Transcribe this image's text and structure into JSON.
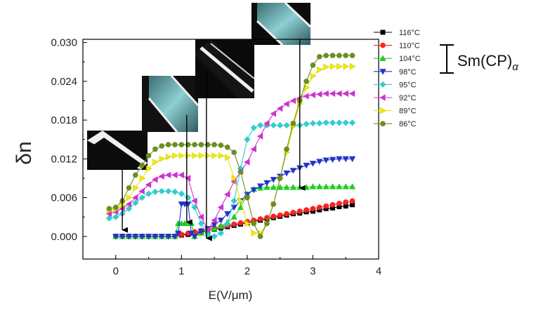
{
  "chart_data": {
    "type": "line",
    "xlabel": "E(V/μm)",
    "ylabel": "δn",
    "xlim": [
      -0.5,
      4
    ],
    "ylim": [
      -0.0035,
      0.0305
    ],
    "xticks": [
      "0",
      "1",
      "2",
      "3",
      "4"
    ],
    "yticks": [
      "0.000",
      "0.006",
      "0.012",
      "0.018",
      "0.024",
      "0.030"
    ],
    "grid": false,
    "legend": "right",
    "bracket_label": "Sm(CP)",
    "bracket_subscript": "α",
    "series": [
      {
        "name": "116°C",
        "color": "#000000",
        "marker": "square",
        "x": [
          0,
          0.1,
          0.2,
          0.3,
          0.4,
          0.5,
          0.6,
          0.7,
          0.8,
          0.9,
          1.0,
          1.1,
          1.2,
          1.3,
          1.4,
          1.5,
          1.6,
          1.7,
          1.8,
          1.9,
          2.0,
          2.1,
          2.2,
          2.3,
          2.4,
          2.5,
          2.6,
          2.7,
          2.8,
          2.9,
          3.0,
          3.1,
          3.2,
          3.3,
          3.4,
          3.5,
          3.6
        ],
        "y": [
          0,
          0,
          0,
          0,
          0,
          0,
          0,
          0,
          0,
          0,
          0.0002,
          0.0003,
          0.0005,
          0.0007,
          0.0009,
          0.0011,
          0.0013,
          0.0015,
          0.0017,
          0.0019,
          0.0021,
          0.0023,
          0.0025,
          0.0027,
          0.0029,
          0.0031,
          0.0033,
          0.0035,
          0.0036,
          0.0038,
          0.0039,
          0.0041,
          0.0043,
          0.0044,
          0.0046,
          0.0047,
          0.0049
        ]
      },
      {
        "name": "110°C",
        "color": "#ff2020",
        "marker": "circle",
        "x": [
          0,
          0.1,
          0.2,
          0.3,
          0.4,
          0.5,
          0.6,
          0.7,
          0.8,
          0.9,
          1.0,
          1.1,
          1.2,
          1.3,
          1.4,
          1.5,
          1.6,
          1.7,
          1.8,
          1.9,
          2.0,
          2.1,
          2.2,
          2.3,
          2.4,
          2.5,
          2.6,
          2.7,
          2.8,
          2.9,
          3.0,
          3.1,
          3.2,
          3.3,
          3.4,
          3.5,
          3.6
        ],
        "y": [
          0,
          0,
          0,
          0,
          0,
          0,
          0,
          0,
          0,
          0,
          0.0003,
          0.0005,
          0.0007,
          0.0009,
          0.0011,
          0.0013,
          0.0015,
          0.0017,
          0.0019,
          0.0021,
          0.0023,
          0.0025,
          0.0027,
          0.0029,
          0.0031,
          0.0033,
          0.0035,
          0.0037,
          0.0039,
          0.0041,
          0.0043,
          0.0045,
          0.0047,
          0.0049,
          0.0051,
          0.0053,
          0.0055
        ]
      },
      {
        "name": "104°C",
        "color": "#22cc22",
        "marker": "triangle-up",
        "x": [
          0,
          0.1,
          0.2,
          0.3,
          0.4,
          0.5,
          0.6,
          0.7,
          0.8,
          0.9,
          0.95,
          1.0,
          1.05,
          1.1,
          1.15,
          1.2,
          1.3,
          1.4,
          1.5,
          1.6,
          1.7,
          1.8,
          1.9,
          2.0,
          2.1,
          2.2,
          2.3,
          2.4,
          2.5,
          2.6,
          2.7,
          2.8,
          2.9,
          3.0,
          3.1,
          3.2,
          3.3,
          3.4,
          3.5,
          3.6
        ],
        "y": [
          0,
          0,
          0,
          0,
          0,
          0,
          0,
          0,
          0,
          0,
          0.002,
          0.002,
          0.002,
          0.002,
          0.002,
          0,
          0.0005,
          0.0008,
          0.0012,
          0.0016,
          0.0022,
          0.003,
          0.0045,
          0.0065,
          0.0073,
          0.0075,
          0.0076,
          0.0076,
          0.0076,
          0.0076,
          0.0076,
          0.0076,
          0.0076,
          0.0077,
          0.0077,
          0.0077,
          0.0077,
          0.0077,
          0.0077,
          0.0077
        ]
      },
      {
        "name": "98°C",
        "color": "#2233cc",
        "marker": "triangle-down",
        "x": [
          0,
          0.1,
          0.2,
          0.3,
          0.4,
          0.5,
          0.6,
          0.7,
          0.8,
          0.9,
          0.95,
          1.0,
          1.05,
          1.1,
          1.15,
          1.2,
          1.3,
          1.4,
          1.5,
          1.6,
          1.7,
          1.8,
          1.9,
          2.0,
          2.1,
          2.2,
          2.3,
          2.4,
          2.5,
          2.6,
          2.7,
          2.8,
          2.9,
          3.0,
          3.1,
          3.2,
          3.3,
          3.4,
          3.5,
          3.6
        ],
        "y": [
          0,
          0,
          0,
          0,
          0,
          0,
          0,
          0,
          0,
          0,
          0.0005,
          0.005,
          0.005,
          0.005,
          0.0005,
          0,
          0.0008,
          0.0012,
          0.0018,
          0.0025,
          0.0035,
          0.0045,
          0.0055,
          0.0065,
          0.0072,
          0.0078,
          0.0083,
          0.0088,
          0.0093,
          0.0098,
          0.0102,
          0.0106,
          0.011,
          0.0113,
          0.0116,
          0.0118,
          0.0119,
          0.012,
          0.012,
          0.012
        ]
      },
      {
        "name": "95°C",
        "color": "#33cccc",
        "marker": "diamond",
        "x": [
          -0.1,
          0,
          0.1,
          0.2,
          0.3,
          0.4,
          0.5,
          0.6,
          0.7,
          0.8,
          0.9,
          1.0,
          1.1,
          1.2,
          1.3,
          1.4,
          1.5,
          1.6,
          1.7,
          1.8,
          1.9,
          2.0,
          2.1,
          2.2,
          2.3,
          2.4,
          2.5,
          2.6,
          2.7,
          2.8,
          2.9,
          3.0,
          3.1,
          3.2,
          3.3,
          3.4,
          3.5,
          3.6
        ],
        "y": [
          0.0028,
          0.003,
          0.0035,
          0.0043,
          0.0052,
          0.006,
          0.0066,
          0.0069,
          0.007,
          0.007,
          0.0069,
          0.0066,
          0.006,
          0.0045,
          0.002,
          0.0002,
          0,
          0.0005,
          0.002,
          0.0055,
          0.0105,
          0.015,
          0.0168,
          0.0172,
          0.0172,
          0.0172,
          0.0172,
          0.0172,
          0.0172,
          0.0172,
          0.0174,
          0.0175,
          0.0175,
          0.0176,
          0.0176,
          0.0176,
          0.0176,
          0.0176
        ]
      },
      {
        "name": "92°C",
        "color": "#cc33cc",
        "marker": "triangle-left",
        "x": [
          -0.1,
          0,
          0.1,
          0.2,
          0.3,
          0.4,
          0.5,
          0.6,
          0.7,
          0.8,
          0.9,
          1.0,
          1.1,
          1.2,
          1.3,
          1.4,
          1.5,
          1.6,
          1.7,
          1.8,
          1.9,
          2.0,
          2.1,
          2.2,
          2.3,
          2.4,
          2.5,
          2.6,
          2.7,
          2.8,
          2.9,
          3.0,
          3.1,
          3.2,
          3.3,
          3.4,
          3.5,
          3.6
        ],
        "y": [
          0.0035,
          0.0038,
          0.0043,
          0.005,
          0.006,
          0.007,
          0.008,
          0.0088,
          0.0093,
          0.0095,
          0.0095,
          0.0095,
          0.009,
          0.0055,
          0.003,
          0.001,
          0.0025,
          0.0045,
          0.0065,
          0.0085,
          0.01,
          0.0115,
          0.0135,
          0.0155,
          0.0175,
          0.019,
          0.0198,
          0.0205,
          0.021,
          0.0214,
          0.0217,
          0.0219,
          0.022,
          0.0221,
          0.0221,
          0.0221,
          0.0221,
          0.0221
        ]
      },
      {
        "name": "89°C",
        "color": "#eeee00",
        "marker": "triangle-right",
        "x": [
          -0.1,
          0,
          0.1,
          0.2,
          0.3,
          0.4,
          0.5,
          0.6,
          0.7,
          0.8,
          0.9,
          1.0,
          1.1,
          1.2,
          1.3,
          1.4,
          1.5,
          1.6,
          1.7,
          1.8,
          1.9,
          2.0,
          2.1,
          2.2,
          2.3,
          2.4,
          2.5,
          2.6,
          2.7,
          2.8,
          2.9,
          3.0,
          3.1,
          3.2,
          3.3,
          3.4,
          3.5,
          3.6
        ],
        "y": [
          0.004,
          0.0042,
          0.0048,
          0.006,
          0.0075,
          0.009,
          0.0105,
          0.0115,
          0.012,
          0.0123,
          0.0125,
          0.0125,
          0.0125,
          0.0125,
          0.0125,
          0.0125,
          0.0125,
          0.0125,
          0.0122,
          0.009,
          0.0055,
          0.002,
          0.0005,
          0.0005,
          0.002,
          0.005,
          0.009,
          0.013,
          0.017,
          0.0205,
          0.023,
          0.0248,
          0.0258,
          0.0262,
          0.0263,
          0.0263,
          0.0263,
          0.0263
        ]
      },
      {
        "name": "86°C",
        "color": "#6b8e23",
        "marker": "circle",
        "x": [
          -0.1,
          0,
          0.1,
          0.2,
          0.3,
          0.4,
          0.5,
          0.6,
          0.7,
          0.8,
          0.9,
          1.0,
          1.1,
          1.2,
          1.3,
          1.4,
          1.5,
          1.6,
          1.7,
          1.8,
          1.9,
          2.0,
          2.1,
          2.2,
          2.3,
          2.4,
          2.5,
          2.6,
          2.7,
          2.8,
          2.9,
          3.0,
          3.1,
          3.2,
          3.3,
          3.4,
          3.5,
          3.6
        ],
        "y": [
          0.0043,
          0.0045,
          0.0055,
          0.0075,
          0.0095,
          0.011,
          0.0125,
          0.0135,
          0.014,
          0.0142,
          0.0142,
          0.0142,
          0.0142,
          0.0142,
          0.0142,
          0.0142,
          0.0142,
          0.0141,
          0.0138,
          0.013,
          0.01,
          0.006,
          0.002,
          0,
          0.002,
          0.005,
          0.009,
          0.0135,
          0.0175,
          0.021,
          0.024,
          0.0265,
          0.0278,
          0.028,
          0.028,
          0.028,
          0.028,
          0.028
        ]
      }
    ],
    "arrows": [
      {
        "x": 0.1,
        "y_start": 0.0108,
        "y_end": 0.001
      },
      {
        "x": 1.08,
        "y_start": 0.0188,
        "y_end": 0.0022
      },
      {
        "x": 1.38,
        "y_start": 0.0256,
        "y_end": -0.0003
      },
      {
        "x": 2.8,
        "y_start": 0.0305,
        "y_end": 0.0075
      }
    ]
  }
}
